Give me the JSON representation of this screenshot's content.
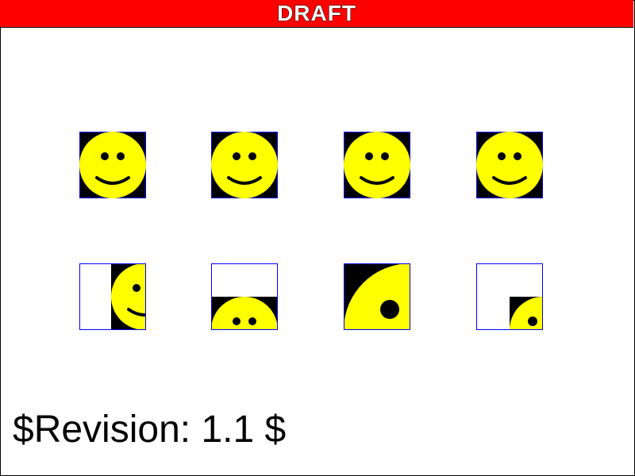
{
  "header": {
    "title": "DRAFT"
  },
  "footer": {
    "revision": "$Revision: 1.1 $"
  },
  "colors": {
    "banner": "#ff0000",
    "face": "#ffff00",
    "tile_background": "#000000",
    "tile_border": "#0000ff"
  },
  "tiles": [
    {
      "name": "full-smiley-1",
      "icon": "smiley-face-icon",
      "crop": "full"
    },
    {
      "name": "full-smiley-2",
      "icon": "smiley-face-icon",
      "crop": "full"
    },
    {
      "name": "full-smiley-3",
      "icon": "smiley-face-icon",
      "crop": "full"
    },
    {
      "name": "full-smiley-4",
      "icon": "smiley-face-icon",
      "crop": "full"
    },
    {
      "name": "left-half-smiley",
      "icon": "smiley-face-icon",
      "crop": "left-half"
    },
    {
      "name": "top-half-smiley",
      "icon": "smiley-face-icon",
      "crop": "top-half"
    },
    {
      "name": "zoomed-smiley",
      "icon": "smiley-face-icon",
      "crop": "zoomed-eye"
    },
    {
      "name": "quarter-smiley",
      "icon": "smiley-face-icon",
      "crop": "top-left-quarter"
    }
  ]
}
